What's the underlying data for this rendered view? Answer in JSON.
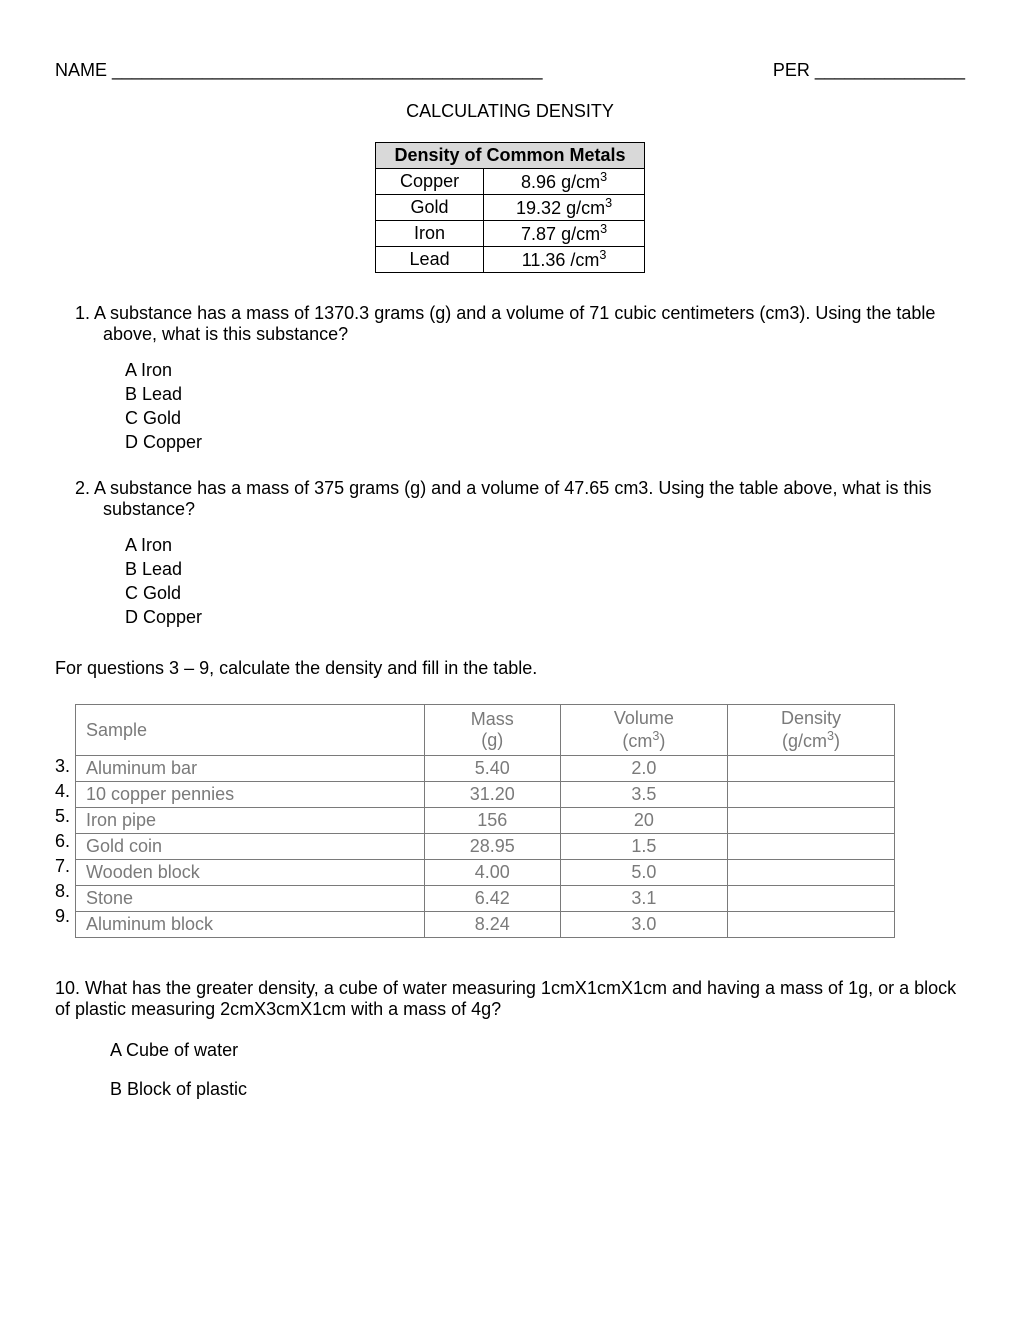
{
  "header": {
    "name_label": "NAME ___________________________________________",
    "per_label": "PER _______________"
  },
  "title": "CALCULATING DENSITY",
  "density_table": {
    "header": "Density of Common Metals",
    "rows": [
      {
        "metal": "Copper",
        "density": "8.96 g/cm",
        "sup": "3"
      },
      {
        "metal": "Gold",
        "density": "19.32 g/cm",
        "sup": "3"
      },
      {
        "metal": "Iron",
        "density": "7.87 g/cm",
        "sup": "3"
      },
      {
        "metal": "Lead",
        "density": "11.36  /cm",
        "sup": "3"
      }
    ]
  },
  "q1": {
    "text": "1.   A substance has a mass of 1370.3 grams (g) and a volume of 71 cubic centimeters (cm3). Using the table above, what is this substance?",
    "opt_a": "A  Iron",
    "opt_b": "B  Lead",
    "opt_c": "C  Gold",
    "opt_d": "D  Copper"
  },
  "q2": {
    "text": "2.   A substance has a mass of 375 grams (g) and a volume of 47.65 cm3.  Using the table above, what is this substance?",
    "opt_a": "A  Iron",
    "opt_b": "B  Lead",
    "opt_c": "C  Gold",
    "opt_d": "D  Copper"
  },
  "instruction": "For questions 3 – 9, calculate the density and fill in the table.",
  "data_table": {
    "headers": {
      "sample": "Sample",
      "mass": "Mass",
      "mass_unit": "(g)",
      "volume": "Volume",
      "volume_unit": "(cm",
      "volume_sup": "3",
      "volume_close": ")",
      "density": "Density",
      "density_unit": "(g/cm",
      "density_sup": "3",
      "density_close": ")"
    },
    "row_nums": [
      "3.",
      "4.",
      "5.",
      "6.",
      "7.",
      "8.",
      "9."
    ],
    "rows": [
      {
        "sample": "Aluminum bar",
        "mass": "5.40",
        "volume": "2.0",
        "density": ""
      },
      {
        "sample": "10 copper pennies",
        "mass": "31.20",
        "volume": "3.5",
        "density": ""
      },
      {
        "sample": "Iron pipe",
        "mass": "156",
        "volume": "20",
        "density": ""
      },
      {
        "sample": "Gold coin",
        "mass": "28.95",
        "volume": "1.5",
        "density": ""
      },
      {
        "sample": "Wooden block",
        "mass": "4.00",
        "volume": "5.0",
        "density": ""
      },
      {
        "sample": "Stone",
        "mass": "6.42",
        "volume": "3.1",
        "density": ""
      },
      {
        "sample": "Aluminum block",
        "mass": "8.24",
        "volume": "3.0",
        "density": ""
      }
    ]
  },
  "q10": {
    "text": "10.  What has the greater density, a cube of water measuring 1cmX1cmX1cm and having a mass of 1g, or a block of plastic measuring 2cmX3cmX1cm with a mass of 4g?",
    "opt_a": "A   Cube of water",
    "opt_b": "B   Block of plastic"
  }
}
